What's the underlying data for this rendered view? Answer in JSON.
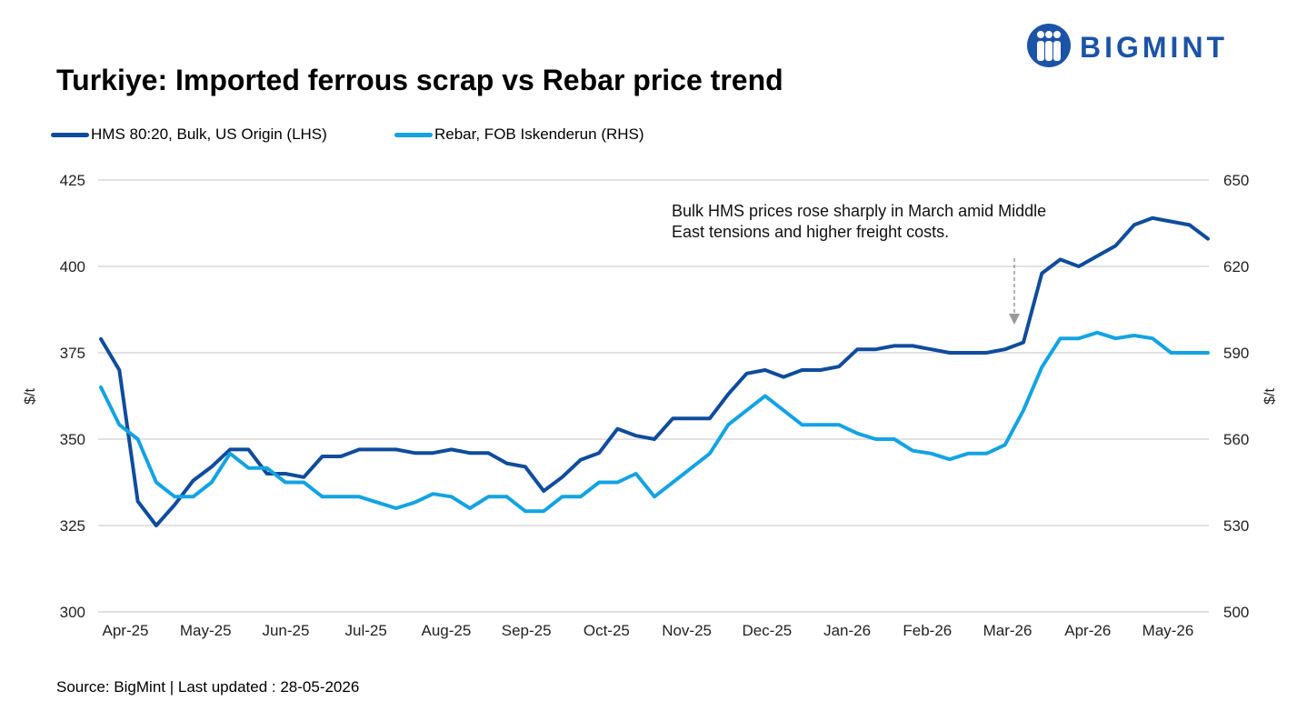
{
  "brand": {
    "name": "BIGMINT",
    "color": "#1B53A6"
  },
  "title": "Turkiye: Imported ferrous scrap vs Rebar price trend",
  "source": "Source: BigMint | Last updated : 28-05-2026",
  "legend": [
    {
      "label": "HMS 80:20, Bulk, US Origin (LHS)",
      "color": "#0F4C9C"
    },
    {
      "label": "Rebar, FOB Iskenderun (RHS)",
      "color": "#13A3E2"
    }
  ],
  "chart_data": {
    "type": "line",
    "x_tick_labels": [
      "Apr-25",
      "May-25",
      "Jun-25",
      "Jul-25",
      "Aug-25",
      "Sep-25",
      "Oct-25",
      "Nov-25",
      "Dec-25",
      "Jan-26",
      "Feb-26",
      "Mar-26",
      "Apr-26",
      "May-26"
    ],
    "y_left": {
      "label": "$/t",
      "min": 300,
      "max": 425,
      "ticks": [
        300,
        325,
        350,
        375,
        400,
        425
      ]
    },
    "y_right": {
      "label": "$/t",
      "min": 500,
      "max": 650,
      "ticks": [
        500,
        530,
        560,
        590,
        620,
        650
      ]
    },
    "grid": true,
    "legend_position": "top-left",
    "annotation": {
      "lines": [
        "Bulk HMS prices rose sharply in March amid Middle",
        "East tensions and higher freight costs."
      ],
      "points_to": "Mar-26"
    },
    "series": [
      {
        "name": "HMS 80:20, Bulk, US Origin (LHS)",
        "axis": "left",
        "color": "#0F4C9C",
        "values": [
          379,
          370,
          332,
          325,
          331,
          338,
          342,
          347,
          347,
          340,
          340,
          339,
          345,
          345,
          347,
          347,
          347,
          346,
          346,
          347,
          346,
          346,
          343,
          342,
          335,
          339,
          344,
          346,
          353,
          351,
          350,
          356,
          356,
          356,
          363,
          369,
          370,
          368,
          370,
          370,
          371,
          376,
          376,
          377,
          377,
          376,
          375,
          375,
          375,
          376,
          378,
          398,
          402,
          400,
          403,
          406,
          412,
          414,
          413,
          412,
          408
        ]
      },
      {
        "name": "Rebar, FOB Iskenderun (RHS)",
        "axis": "right",
        "color": "#13A3E2",
        "values": [
          578,
          565,
          560,
          545,
          540,
          540,
          545,
          555,
          550,
          550,
          545,
          545,
          540,
          540,
          540,
          538,
          536,
          538,
          541,
          540,
          536,
          540,
          540,
          535,
          535,
          540,
          540,
          545,
          545,
          548,
          540,
          545,
          550,
          555,
          565,
          570,
          575,
          570,
          565,
          565,
          565,
          562,
          560,
          560,
          556,
          555,
          553,
          555,
          555,
          558,
          570,
          585,
          595,
          595,
          597,
          595,
          596,
          595,
          590,
          590,
          590
        ]
      }
    ]
  }
}
